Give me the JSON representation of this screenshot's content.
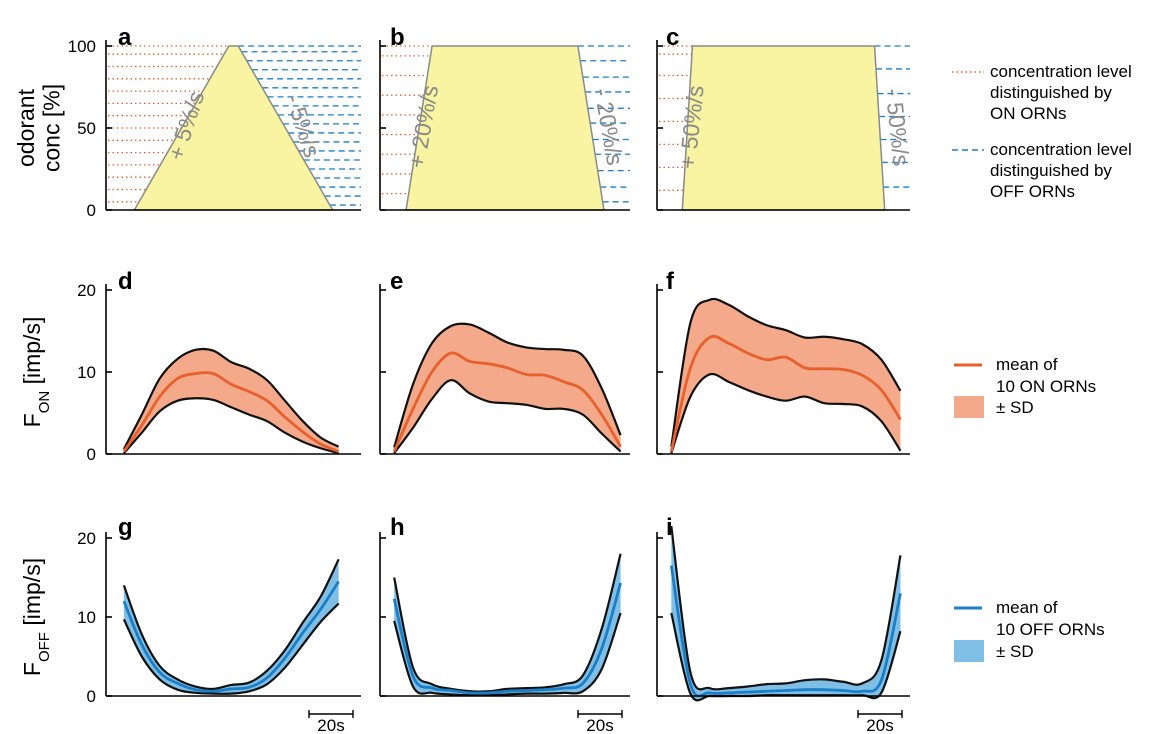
{
  "panel_labels": [
    "a",
    "b",
    "c",
    "d",
    "e",
    "f",
    "g",
    "h",
    "i"
  ],
  "colors": {
    "on": "#e8612c",
    "on_fill": "#f4a98a",
    "off": "#1a7fc8",
    "off_fill": "#7fbfe6",
    "stimulus_fill": "#f8f4a2",
    "stimulus_edge": "#8a8a8a",
    "on_level_line": "#e8612c",
    "off_level_line": "#1a7fc8"
  },
  "legend": {
    "top": [
      {
        "line": "dotted-orange",
        "text": [
          "concentration level",
          "distinguished by",
          "ON ORNs"
        ]
      },
      {
        "line": "dashed-blue",
        "text": [
          "concentration level",
          "distinguished by",
          "OFF ORNs"
        ]
      }
    ],
    "on": {
      "mean_text": [
        "mean of",
        "10 ON ORNs"
      ],
      "sd_text": "± SD"
    },
    "off": {
      "mean_text": [
        "mean of",
        "10 OFF ORNs"
      ],
      "sd_text": "± SD"
    }
  },
  "scale_bar": "20s",
  "chart_data": [
    {
      "panel": "a",
      "type": "area",
      "ylabel": [
        "odorant",
        "conc [%]"
      ],
      "ylim": [
        0,
        100
      ],
      "yticks": [
        0,
        50,
        100
      ],
      "rise_label": "+ 5%/s",
      "fall_label": "- 5%/s",
      "x": [
        0,
        20,
        22,
        42
      ],
      "y": [
        0,
        100,
        100,
        0
      ],
      "on_levels": [
        5,
        12.5,
        20,
        27.5,
        35,
        42.5,
        50,
        57.5,
        65,
        72.5,
        80,
        87.5,
        95,
        100
      ],
      "off_levels": [
        3,
        8.5,
        14,
        19.5,
        25,
        30.5,
        36,
        41.5,
        47,
        52.5,
        58,
        63.5,
        69,
        74.5,
        80,
        85.5,
        91,
        96.5,
        100
      ]
    },
    {
      "panel": "b",
      "type": "area",
      "ylim": [
        0,
        100
      ],
      "yticks": [
        0,
        50,
        100
      ],
      "rise_label": "+ 20%/s",
      "fall_label": "- 20%/s",
      "x": [
        0,
        5,
        33,
        38
      ],
      "y": [
        0,
        100,
        100,
        0
      ],
      "on_levels": [
        10,
        22,
        34,
        46,
        58,
        70,
        82,
        94,
        100
      ],
      "off_levels": [
        5,
        14,
        24,
        34,
        43,
        53,
        62,
        72,
        81,
        91,
        100
      ]
    },
    {
      "panel": "c",
      "type": "area",
      "ylim": [
        0,
        100
      ],
      "yticks": [
        0,
        50,
        100
      ],
      "rise_label": "+ 50%/s",
      "fall_label": "- 50%/s",
      "x": [
        0,
        2,
        38,
        40
      ],
      "y": [
        0,
        100,
        100,
        0
      ],
      "on_levels": [
        12,
        26,
        40,
        54,
        68,
        82,
        95,
        100
      ],
      "off_levels": [
        14,
        29,
        43,
        57,
        71,
        86,
        100
      ]
    },
    {
      "panel": "d",
      "type": "line",
      "ylabel": "F",
      "ylabel_sub": "ON",
      "ylabel_unit": "[imp/s]",
      "ylim": [
        0,
        20
      ],
      "yticks": [
        0,
        10,
        20
      ],
      "series": [
        {
          "name": "mean of 10 ON ORNs",
          "x": [
            0,
            4,
            8,
            12,
            16,
            20,
            24,
            28,
            32,
            36,
            40,
            44,
            48
          ],
          "mean": [
            0.3,
            3.5,
            7.0,
            9.2,
            9.8,
            9.8,
            8.5,
            7.6,
            6.5,
            4.5,
            2.7,
            1.2,
            0.3
          ],
          "upper": [
            0.6,
            4.8,
            9.2,
            11.6,
            12.7,
            12.6,
            11.2,
            10.4,
            9.0,
            6.5,
            4.0,
            2.0,
            0.9
          ],
          "lower": [
            0.1,
            2.6,
            5.2,
            6.5,
            6.8,
            6.6,
            5.7,
            4.8,
            4.0,
            2.6,
            1.5,
            0.7,
            0.1
          ]
        }
      ]
    },
    {
      "panel": "e",
      "type": "line",
      "ylim": [
        0,
        20
      ],
      "yticks": [
        0,
        10,
        20
      ],
      "series": [
        {
          "name": "mean of 10 ON ORNs",
          "x": [
            0,
            4,
            8,
            12,
            16,
            20,
            24,
            28,
            32,
            36,
            40,
            44,
            48
          ],
          "mean": [
            0.3,
            5.5,
            10.0,
            12.3,
            11.3,
            11.0,
            10.5,
            9.7,
            9.6,
            8.8,
            7.8,
            4.8,
            0.9
          ],
          "upper": [
            0.8,
            8.5,
            13.5,
            15.6,
            15.8,
            14.8,
            13.6,
            13.0,
            12.8,
            12.7,
            12.0,
            8.0,
            2.3
          ],
          "lower": [
            0.1,
            3.2,
            6.7,
            9.0,
            7.4,
            6.4,
            6.2,
            6.0,
            5.5,
            5.5,
            4.8,
            2.5,
            0.3
          ]
        }
      ]
    },
    {
      "panel": "f",
      "type": "line",
      "ylim": [
        0,
        20
      ],
      "yticks": [
        0,
        10,
        20
      ],
      "series": [
        {
          "name": "mean of 10 ON ORNs",
          "x": [
            0,
            4,
            8,
            12,
            16,
            20,
            24,
            28,
            32,
            36,
            40,
            44,
            48
          ],
          "mean": [
            0.3,
            10.5,
            14.2,
            13.5,
            12.3,
            11.5,
            11.8,
            10.5,
            10.4,
            10.3,
            9.6,
            7.8,
            4.2
          ],
          "upper": [
            0.9,
            16.0,
            18.8,
            18.2,
            16.8,
            15.7,
            15.1,
            14.2,
            14.3,
            14.0,
            13.4,
            11.5,
            7.7
          ],
          "lower": [
            0.1,
            7.0,
            9.7,
            8.8,
            7.8,
            7.0,
            6.5,
            7.0,
            6.2,
            6.1,
            5.8,
            4.0,
            0.4
          ]
        }
      ]
    },
    {
      "panel": "g",
      "type": "line",
      "ylabel": "F",
      "ylabel_sub": "OFF",
      "ylabel_unit": "[imp/s]",
      "ylim": [
        0,
        20
      ],
      "yticks": [
        0,
        10,
        20
      ],
      "series": [
        {
          "name": "mean of 10 OFF ORNs",
          "x": [
            0,
            4,
            8,
            12,
            16,
            20,
            24,
            28,
            32,
            36,
            40,
            44,
            48
          ],
          "mean": [
            12.0,
            6.5,
            3.0,
            1.6,
            0.8,
            0.6,
            0.9,
            1.1,
            2.3,
            4.8,
            8.0,
            11.0,
            14.5
          ],
          "upper": [
            14.0,
            7.8,
            3.8,
            2.1,
            1.2,
            0.9,
            1.4,
            1.7,
            3.2,
            5.8,
            9.3,
            12.6,
            17.3
          ],
          "lower": [
            9.7,
            5.0,
            2.1,
            0.8,
            0.4,
            0.3,
            0.3,
            0.6,
            1.5,
            3.6,
            6.5,
            9.4,
            11.7
          ]
        }
      ]
    },
    {
      "panel": "h",
      "type": "line",
      "ylim": [
        0,
        20
      ],
      "yticks": [
        0,
        10,
        20
      ],
      "series": [
        {
          "name": "mean of 10 OFF ORNs",
          "x": [
            0,
            4,
            8,
            12,
            16,
            20,
            24,
            28,
            32,
            36,
            40,
            44,
            48
          ],
          "mean": [
            12.3,
            2.5,
            1.0,
            0.7,
            0.4,
            0.4,
            0.6,
            0.7,
            0.8,
            1.0,
            1.6,
            6.0,
            14.3
          ],
          "upper": [
            15.0,
            3.6,
            1.5,
            0.9,
            0.6,
            0.6,
            0.9,
            1.0,
            1.1,
            1.5,
            2.6,
            8.5,
            18.0
          ],
          "lower": [
            9.5,
            1.2,
            0.4,
            0.2,
            0.1,
            0.1,
            0.2,
            0.3,
            0.3,
            0.4,
            0.6,
            3.4,
            10.5
          ]
        }
      ]
    },
    {
      "panel": "i",
      "type": "line",
      "ylim": [
        0,
        20
      ],
      "yticks": [
        0,
        10,
        20
      ],
      "series": [
        {
          "name": "mean of 10 OFF ORNs",
          "x": [
            0,
            4,
            8,
            12,
            16,
            20,
            24,
            28,
            32,
            36,
            40,
            44,
            48
          ],
          "mean": [
            16.5,
            1.5,
            0.4,
            0.4,
            0.5,
            0.6,
            0.7,
            0.8,
            0.8,
            0.7,
            0.6,
            2.0,
            13.0
          ],
          "upper": [
            21.5,
            3.0,
            1.0,
            1.0,
            1.2,
            1.5,
            1.6,
            2.0,
            2.1,
            1.8,
            1.6,
            4.5,
            17.8
          ],
          "lower": [
            10.5,
            0.3,
            0.0,
            0.0,
            0.0,
            0.1,
            0.1,
            0.1,
            0.1,
            0.1,
            0.1,
            0.4,
            8.2
          ]
        }
      ]
    }
  ]
}
